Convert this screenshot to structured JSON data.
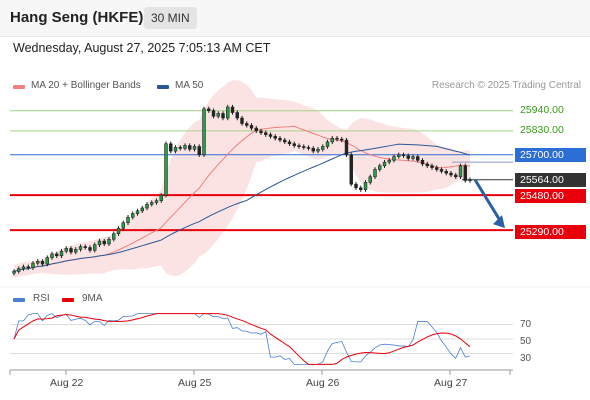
{
  "header": {
    "title": "Hang Seng (HKFE)",
    "timeframe": "30 MIN",
    "datetime": "Wednesday, August 27, 2025 7:05:13 AM CET"
  },
  "legend": {
    "bollinger": "MA 20 + Bollinger Bands",
    "ma50": "MA 50",
    "credit": "Research © 2025 Trading Central"
  },
  "levels": [
    {
      "value": 25940.0,
      "label": "25940.00",
      "style": "green-line"
    },
    {
      "value": 25830.0,
      "label": "25830.00",
      "style": "green-line"
    },
    {
      "value": 25700.0,
      "label": "25700.00",
      "style": "blue"
    },
    {
      "value": 25564.0,
      "label": "25564.00",
      "style": "last-price"
    },
    {
      "value": 25480.0,
      "label": "25480.00",
      "style": "red"
    },
    {
      "value": 25290.0,
      "label": "25290.00",
      "style": "red"
    }
  ],
  "rsi": {
    "legend_rsi": "RSI",
    "legend_ma": "9MA",
    "levels": [
      "70",
      "50",
      "30"
    ]
  },
  "x_axis": {
    "labels": [
      "Aug 22",
      "Aug 25",
      "Aug 26",
      "Aug 27"
    ]
  },
  "colors": {
    "bollinger": "#f08080",
    "ma50": "#2b5797",
    "support": "#e8000b",
    "pivot": "#2b6fd6",
    "target_arrow": "#2b5fa8",
    "resistance": "#3a9a1a"
  },
  "chart_data": {
    "type": "candlestick",
    "instrument": "Hang Seng (HKFE)",
    "timeframe": "30 MIN",
    "ylim": [
      25040,
      26020
    ],
    "close": [
      25065,
      25080,
      25090,
      25085,
      25110,
      25120,
      25105,
      25140,
      25160,
      25150,
      25175,
      25190,
      25170,
      25185,
      25200,
      25195,
      25180,
      25210,
      25230,
      25215,
      25240,
      25270,
      25300,
      25330,
      25360,
      25380,
      25395,
      25410,
      25430,
      25440,
      25450,
      25480,
      25760,
      25720,
      25740,
      25735,
      25750,
      25730,
      25745,
      25700,
      25950,
      25940,
      25910,
      25925,
      25900,
      25960,
      25930,
      25900,
      25870,
      25860,
      25845,
      25830,
      25820,
      25810,
      25800,
      25790,
      25780,
      25770,
      25760,
      25750,
      25745,
      25740,
      25735,
      25720,
      25730,
      25745,
      25770,
      25790,
      25785,
      25780,
      25700,
      25540,
      25520,
      25510,
      25550,
      25580,
      25620,
      25640,
      25660,
      25670,
      25690,
      25700,
      25695,
      25680,
      25690,
      25670,
      25650,
      25640,
      25630,
      25620,
      25610,
      25600,
      25590,
      25580,
      25640,
      25560,
      25564
    ],
    "target": 25290.0,
    "rsi_ylim": [
      10,
      90
    ],
    "rsi_levels": [
      70,
      50,
      30
    ]
  }
}
